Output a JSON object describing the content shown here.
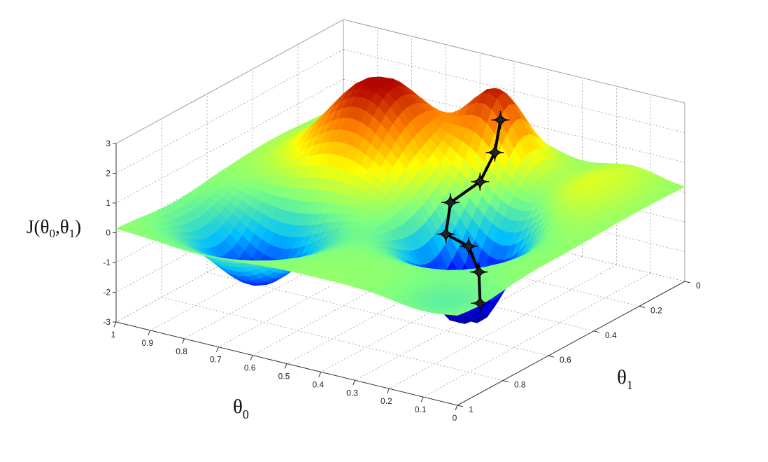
{
  "chart_data": {
    "type": "surface",
    "z_label_main": "J(θ",
    "z_label_sub0": "0",
    "z_label_sep": ",θ",
    "z_label_sub1": "1",
    "z_label_close": ")",
    "x_label_main": "θ",
    "x_label_sub": "0",
    "y_label_main": "θ",
    "y_label_sub": "1",
    "z_ticks": [
      "3",
      "2",
      "1",
      "0",
      "-1",
      "-2",
      "-3"
    ],
    "theta0_ticks": [
      "1",
      "0.9",
      "0.8",
      "0.7",
      "0.6",
      "0.5",
      "0.4",
      "0.3",
      "0.2",
      "0.1",
      "0"
    ],
    "theta1_ticks": [
      "0",
      "0.2",
      "0.4",
      "0.6",
      "0.8",
      "1"
    ],
    "xlim": [
      0,
      1
    ],
    "ylim": [
      0,
      1
    ],
    "zlim": [
      -3,
      3
    ],
    "grid": true,
    "colormap": [
      "#00008f",
      "#0000ff",
      "#00bfff",
      "#7fff7f",
      "#ffff00",
      "#ff8000",
      "#b00000"
    ],
    "descent_path_color": "#000000",
    "descent_path": [
      {
        "theta0": 0.42,
        "theta1": 0.18,
        "J": 2.0
      },
      {
        "theta0": 0.41,
        "theta1": 0.22,
        "J": 1.1
      },
      {
        "theta0": 0.42,
        "theta1": 0.27,
        "J": 0.3
      },
      {
        "theta0": 0.48,
        "theta1": 0.31,
        "J": -0.4
      },
      {
        "theta0": 0.46,
        "theta1": 0.36,
        "J": -1.2
      },
      {
        "theta0": 0.38,
        "theta1": 0.38,
        "J": -1.3
      },
      {
        "theta0": 0.33,
        "theta1": 0.41,
        "J": -1.9
      },
      {
        "theta0": 0.3,
        "theta1": 0.45,
        "J": -2.7
      }
    ]
  }
}
